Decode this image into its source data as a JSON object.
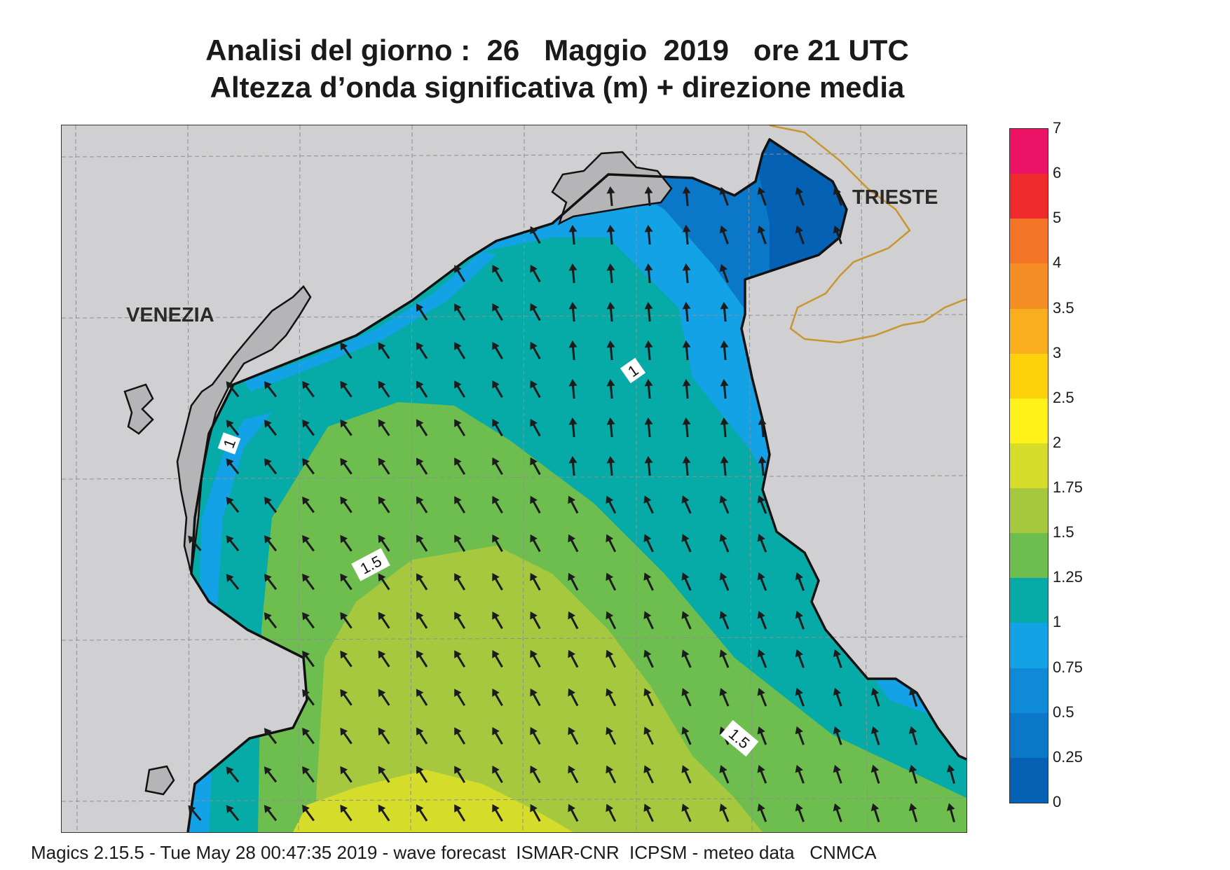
{
  "title": {
    "line1": "Analisi del giorno :  26   Maggio  2019   ore 21 UTC",
    "line2": "Altezza d’onda significativa (m) + direzione media"
  },
  "map": {
    "city_labels": {
      "venezia": "VENEZIA",
      "trieste": "TRIESTE"
    },
    "contour_labels": [
      "1",
      "1",
      "1.5",
      "1.5"
    ],
    "colors": {
      "land": "#d0d0d2",
      "land_dark": "#b5b5b8",
      "coast": "#111111",
      "border": "#c8962e",
      "grid": "#8f8f8f",
      "arrow": "#1c1c1c"
    },
    "wave_direction_icon": "arrow-icon"
  },
  "colorbar": {
    "levels": [
      "0",
      "0.25",
      "0.5",
      "0.75",
      "1",
      "1.25",
      "1.5",
      "1.75",
      "2",
      "2.5",
      "3",
      "3.5",
      "4",
      "5",
      "6",
      "7"
    ],
    "colors": [
      "#0461b4",
      "#0a77c9",
      "#0e8ad9",
      "#13a2e6",
      "#06aba7",
      "#6ebd4f",
      "#a5c83f",
      "#d5dc2a",
      "#fff21a",
      "#fdd20c",
      "#f9ae1e",
      "#f58d25",
      "#f47527",
      "#ee2a2d",
      "#ec1367"
    ]
  },
  "footer": "Magics 2.15.5 - Tue May 28 00:47:35 2019 - wave forecast  ISMAR-CNR  ICPSM - meteo data   CNMCA"
}
